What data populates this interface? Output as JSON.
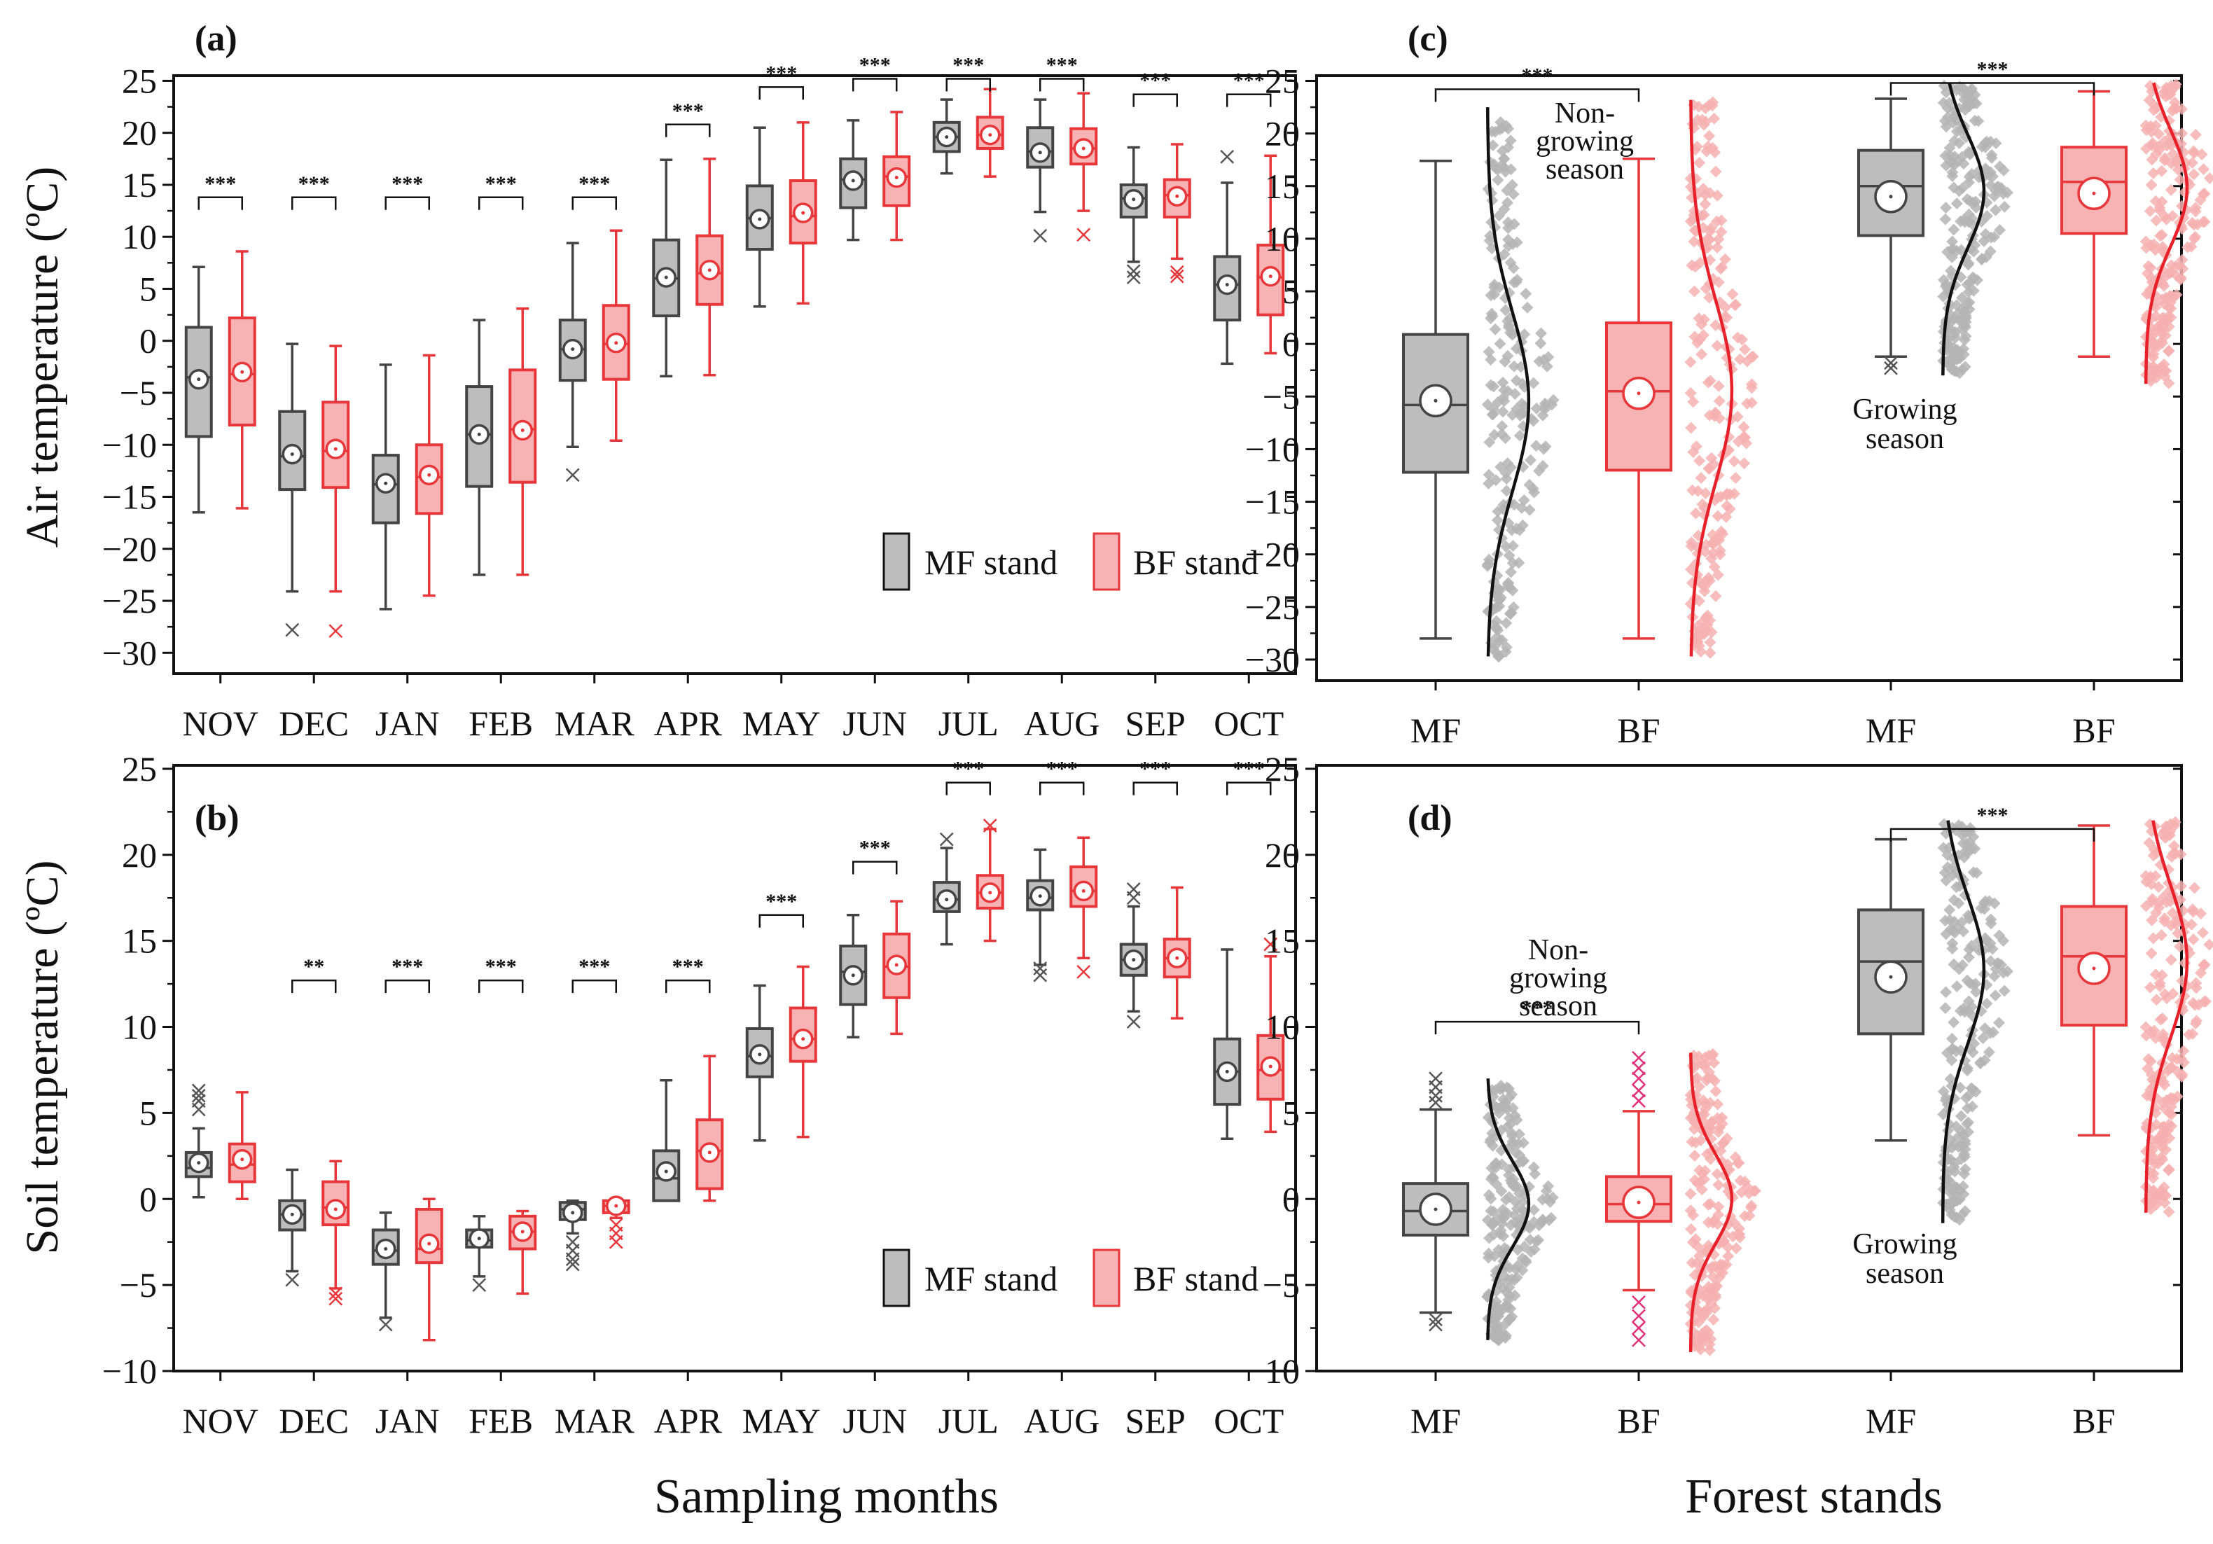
{
  "xlabel_left": "Sampling months",
  "xlabel_right": "Forest stands",
  "ylabel_top": "Air temperature (ºC)",
  "ylabel_bottom": "Soil temperature (ºC)",
  "colors": {
    "mf_stroke": "#444444",
    "mf_fill": "#bdbdbd",
    "bf_stroke": "#e8373a",
    "bf_fill": "#f7b3b3",
    "bf_outlier_soil": "#e0307a",
    "black": "#111111"
  },
  "chart_data": [
    {
      "panel": "(a)",
      "type": "box",
      "ylim": [
        -32,
        25
      ],
      "yticks": [
        -30,
        -25,
        -20,
        -15,
        -10,
        -5,
        0,
        5,
        10,
        15,
        20,
        25
      ],
      "categories": [
        "NOV",
        "DEC",
        "JAN",
        "FEB",
        "MAR",
        "APR",
        "MAY",
        "JUN",
        "JUL",
        "AUG",
        "SEP",
        "OCT"
      ],
      "legend": [
        "MF stand",
        "BF stand"
      ],
      "series": [
        {
          "name": "MF stand",
          "boxes": [
            {
              "min": -16.5,
              "q1": -9.2,
              "median": -3.5,
              "q3": 1.3,
              "max": 7.1,
              "mean": -3.7,
              "outliers": []
            },
            {
              "min": -24.1,
              "q1": -14.3,
              "median": -11.1,
              "q3": -6.8,
              "max": -0.3,
              "mean": -10.9,
              "outliers": [
                -27.8
              ]
            },
            {
              "min": -25.8,
              "q1": -17.5,
              "median": -13.8,
              "q3": -11.0,
              "max": -2.3,
              "mean": -13.7,
              "outliers": []
            },
            {
              "min": -22.5,
              "q1": -14.0,
              "median": -9.0,
              "q3": -4.4,
              "max": 2.0,
              "mean": -9.0,
              "outliers": []
            },
            {
              "min": -10.2,
              "q1": -3.8,
              "median": -0.8,
              "q3": 2.0,
              "max": 9.4,
              "mean": -0.8,
              "outliers": [
                -12.9
              ]
            },
            {
              "min": -3.4,
              "q1": 2.4,
              "median": 6.0,
              "q3": 9.7,
              "max": 17.4,
              "mean": 6.1,
              "outliers": []
            },
            {
              "min": 3.3,
              "q1": 8.8,
              "median": 11.8,
              "q3": 14.9,
              "max": 20.5,
              "mean": 11.7,
              "outliers": []
            },
            {
              "min": 9.7,
              "q1": 12.8,
              "median": 15.5,
              "q3": 17.5,
              "max": 21.2,
              "mean": 15.4,
              "outliers": []
            },
            {
              "min": 16.1,
              "q1": 18.2,
              "median": 19.6,
              "q3": 21.0,
              "max": 23.2,
              "mean": 19.6,
              "outliers": []
            },
            {
              "min": 12.4,
              "q1": 16.7,
              "median": 18.2,
              "q3": 20.5,
              "max": 23.2,
              "mean": 18.1,
              "outliers": [
                10.1
              ]
            },
            {
              "min": 7.6,
              "q1": 11.9,
              "median": 13.7,
              "q3": 15.0,
              "max": 18.6,
              "mean": 13.6,
              "outliers": [
                6.1,
                6.7
              ]
            },
            {
              "min": -2.2,
              "q1": 2.0,
              "median": 5.4,
              "q3": 8.1,
              "max": 15.2,
              "mean": 5.4,
              "outliers": [
                17.7
              ]
            }
          ]
        },
        {
          "name": "BF stand",
          "boxes": [
            {
              "min": -16.1,
              "q1": -8.1,
              "median": -3.2,
              "q3": 2.2,
              "max": 8.6,
              "mean": -3.0,
              "outliers": []
            },
            {
              "min": -24.1,
              "q1": -14.1,
              "median": -10.6,
              "q3": -5.9,
              "max": -0.5,
              "mean": -10.4,
              "outliers": [
                -27.9
              ]
            },
            {
              "min": -24.5,
              "q1": -16.6,
              "median": -13.1,
              "q3": -10.0,
              "max": -1.4,
              "mean": -12.9,
              "outliers": []
            },
            {
              "min": -22.5,
              "q1": -13.6,
              "median": -8.5,
              "q3": -2.8,
              "max": 3.1,
              "mean": -8.6,
              "outliers": []
            },
            {
              "min": -9.6,
              "q1": -3.7,
              "median": -0.3,
              "q3": 3.4,
              "max": 10.6,
              "mean": -0.2,
              "outliers": []
            },
            {
              "min": -3.3,
              "q1": 3.5,
              "median": 6.5,
              "q3": 10.1,
              "max": 17.5,
              "mean": 6.8,
              "outliers": []
            },
            {
              "min": 3.6,
              "q1": 9.4,
              "median": 12.0,
              "q3": 15.4,
              "max": 21.0,
              "mean": 12.3,
              "outliers": []
            },
            {
              "min": 9.7,
              "q1": 13.0,
              "median": 15.8,
              "q3": 17.7,
              "max": 22.0,
              "mean": 15.7,
              "outliers": []
            },
            {
              "min": 15.8,
              "q1": 18.5,
              "median": 19.8,
              "q3": 21.5,
              "max": 24.2,
              "mean": 19.8,
              "outliers": []
            },
            {
              "min": 12.5,
              "q1": 17.0,
              "median": 18.5,
              "q3": 20.4,
              "max": 23.8,
              "mean": 18.5,
              "outliers": [
                10.2
              ]
            },
            {
              "min": 7.9,
              "q1": 11.9,
              "median": 14.0,
              "q3": 15.5,
              "max": 18.9,
              "mean": 13.9,
              "outliers": [
                6.2,
                6.6
              ]
            },
            {
              "min": -1.2,
              "q1": 2.5,
              "median": 6.1,
              "q3": 9.2,
              "max": 17.8,
              "mean": 6.2,
              "outliers": []
            }
          ]
        }
      ],
      "significance": [
        "***",
        "***",
        "***",
        "***",
        "***",
        "***",
        "***",
        "***",
        "***",
        "***",
        "***",
        "***"
      ]
    },
    {
      "panel": "(b)",
      "type": "box",
      "ylim": [
        -10,
        25
      ],
      "yticks": [
        -10,
        -5,
        0,
        5,
        10,
        15,
        20,
        25
      ],
      "categories": [
        "NOV",
        "DEC",
        "JAN",
        "FEB",
        "MAR",
        "APR",
        "MAY",
        "JUN",
        "JUL",
        "AUG",
        "SEP",
        "OCT"
      ],
      "legend": [
        "MF stand",
        "BF stand"
      ],
      "series": [
        {
          "name": "MF stand",
          "boxes": [
            {
              "min": 0.1,
              "q1": 1.3,
              "median": 1.8,
              "q3": 2.7,
              "max": 4.1,
              "mean": 2.1,
              "outliers": [
                5.2,
                5.7,
                6.0,
                6.3
              ]
            },
            {
              "min": -4.2,
              "q1": -1.8,
              "median": -0.9,
              "q3": -0.1,
              "max": 1.7,
              "mean": -0.9,
              "outliers": [
                -4.7
              ]
            },
            {
              "min": -6.9,
              "q1": -3.8,
              "median": -3.0,
              "q3": -1.8,
              "max": -0.8,
              "mean": -2.9,
              "outliers": [
                -7.3
              ]
            },
            {
              "min": -4.5,
              "q1": -2.8,
              "median": -2.4,
              "q3": -1.8,
              "max": -1.0,
              "mean": -2.3,
              "outliers": [
                -5.0
              ]
            },
            {
              "min": -2.0,
              "q1": -1.2,
              "median": -0.6,
              "q3": -0.2,
              "max": -0.1,
              "mean": -0.8,
              "outliers": [
                -2.5,
                -3.0,
                -3.5,
                -3.8
              ]
            },
            {
              "min": -0.1,
              "q1": -0.1,
              "median": 1.2,
              "q3": 2.8,
              "max": 6.9,
              "mean": 1.6,
              "outliers": []
            },
            {
              "min": 3.4,
              "q1": 7.1,
              "median": 8.3,
              "q3": 9.9,
              "max": 12.4,
              "mean": 8.4,
              "outliers": []
            },
            {
              "min": 9.4,
              "q1": 11.3,
              "median": 13.2,
              "q3": 14.7,
              "max": 16.5,
              "mean": 13.0,
              "outliers": []
            },
            {
              "min": 14.8,
              "q1": 16.7,
              "median": 17.4,
              "q3": 18.4,
              "max": 20.4,
              "mean": 17.4,
              "outliers": [
                20.9
              ]
            },
            {
              "min": 13.6,
              "q1": 16.8,
              "median": 17.5,
              "q3": 18.5,
              "max": 20.3,
              "mean": 17.6,
              "outliers": [
                13.0,
                13.4
              ]
            },
            {
              "min": 10.9,
              "q1": 13.0,
              "median": 13.9,
              "q3": 14.8,
              "max": 17.0,
              "mean": 13.9,
              "outliers": [
                10.3,
                17.5,
                18.0
              ]
            },
            {
              "min": 3.5,
              "q1": 5.5,
              "median": 7.4,
              "q3": 9.3,
              "max": 14.5,
              "mean": 7.4,
              "outliers": []
            }
          ]
        },
        {
          "name": "BF stand",
          "boxes": [
            {
              "min": 0.0,
              "q1": 1.0,
              "median": 2.0,
              "q3": 3.2,
              "max": 6.2,
              "mean": 2.3,
              "outliers": []
            },
            {
              "min": -5.2,
              "q1": -1.5,
              "median": -0.5,
              "q3": 1.0,
              "max": 2.2,
              "mean": -0.6,
              "outliers": [
                -5.5,
                -5.8
              ]
            },
            {
              "min": -8.2,
              "q1": -3.7,
              "median": -2.9,
              "q3": -0.6,
              "max": 0.0,
              "mean": -2.6,
              "outliers": []
            },
            {
              "min": -5.5,
              "q1": -2.9,
              "median": -1.9,
              "q3": -1.0,
              "max": -0.7,
              "mean": -1.9,
              "outliers": []
            },
            {
              "min": -1.1,
              "q1": -0.8,
              "median": -0.4,
              "q3": -0.1,
              "max": -0.1,
              "mean": -0.4,
              "outliers": [
                -1.5,
                -2.0,
                -2.5
              ]
            },
            {
              "min": -0.1,
              "q1": 0.6,
              "median": 2.8,
              "q3": 4.6,
              "max": 8.3,
              "mean": 2.7,
              "outliers": []
            },
            {
              "min": 3.6,
              "q1": 8.0,
              "median": 9.3,
              "q3": 11.1,
              "max": 13.5,
              "mean": 9.3,
              "outliers": []
            },
            {
              "min": 9.6,
              "q1": 11.7,
              "median": 13.5,
              "q3": 15.4,
              "max": 17.3,
              "mean": 13.6,
              "outliers": []
            },
            {
              "min": 15.0,
              "q1": 16.9,
              "median": 17.8,
              "q3": 18.8,
              "max": 21.5,
              "mean": 17.8,
              "outliers": [
                21.7
              ]
            },
            {
              "min": 14.0,
              "q1": 17.0,
              "median": 17.9,
              "q3": 19.3,
              "max": 21.0,
              "mean": 17.9,
              "outliers": [
                13.2
              ]
            },
            {
              "min": 10.5,
              "q1": 12.9,
              "median": 14.0,
              "q3": 15.1,
              "max": 18.1,
              "mean": 14.0,
              "outliers": []
            },
            {
              "min": 3.9,
              "q1": 5.8,
              "median": 7.5,
              "q3": 9.5,
              "max": 14.1,
              "mean": 7.7,
              "outliers": [
                14.8
              ]
            }
          ]
        }
      ],
      "significance": [
        "",
        "**",
        "***",
        "***",
        "***",
        "***",
        "***",
        "***",
        "***",
        "***",
        "***",
        "***"
      ]
    },
    {
      "panel": "(c)",
      "type": "box",
      "ylim": [
        -32,
        25
      ],
      "yticks": [
        -30,
        -25,
        -20,
        -15,
        -10,
        -5,
        0,
        5,
        10,
        15,
        20,
        25
      ],
      "categories": [
        "MF",
        "BF",
        "MF",
        "BF"
      ],
      "groups": [
        "Non-growing season",
        "Growing season"
      ],
      "boxes": [
        {
          "stand": "MF",
          "min": -28.0,
          "q1": -12.2,
          "median": -5.8,
          "q3": 0.9,
          "max": 17.4,
          "mean": -5.4,
          "outliers": [],
          "dist_mean": -5.5,
          "dist_sd": 8.5,
          "dist_range": [
            -29.7,
            22.5
          ]
        },
        {
          "stand": "BF",
          "min": -28.0,
          "q1": -12.0,
          "median": -4.5,
          "q3": 2.0,
          "max": 17.6,
          "mean": -4.7,
          "outliers": [],
          "dist_mean": -4.5,
          "dist_sd": 8.7,
          "dist_range": [
            -29.7,
            23.2
          ]
        },
        {
          "stand": "MF",
          "min": -1.2,
          "q1": 10.3,
          "median": 15.0,
          "q3": 18.4,
          "max": 23.3,
          "mean": 14.0,
          "outliers": [
            -1.8,
            -2.3
          ],
          "dist_mean": 14.5,
          "dist_sd": 5.4,
          "dist_range": [
            -3.0,
            24.8
          ]
        },
        {
          "stand": "BF",
          "min": -1.2,
          "q1": 10.5,
          "median": 15.4,
          "q3": 18.7,
          "max": 24.0,
          "mean": 14.3,
          "outliers": [],
          "dist_mean": 14.8,
          "dist_sd": 5.5,
          "dist_range": [
            -3.8,
            24.8
          ]
        }
      ],
      "significance": [
        "***",
        "***"
      ]
    },
    {
      "panel": "(d)",
      "type": "box",
      "ylim": [
        -10,
        25
      ],
      "yticks": [
        -10,
        -5,
        0,
        5,
        10,
        15,
        20,
        25
      ],
      "categories": [
        "MF",
        "BF",
        "MF",
        "BF"
      ],
      "groups": [
        "Non-growing season",
        "Growing season"
      ],
      "boxes": [
        {
          "stand": "MF",
          "min": -6.6,
          "q1": -2.1,
          "median": -0.7,
          "q3": 0.9,
          "max": 5.2,
          "mean": -0.6,
          "outliers": [
            -7.3,
            -7.0,
            5.6,
            6.0,
            6.5,
            7.0
          ],
          "dist_mean": -0.3,
          "dist_sd": 2.5,
          "dist_range": [
            -8.2,
            7.0
          ]
        },
        {
          "stand": "BF",
          "min": -5.3,
          "q1": -1.3,
          "median": -0.3,
          "q3": 1.3,
          "max": 5.1,
          "mean": -0.2,
          "outliers": [
            -8.2,
            -7.5,
            -6.8,
            -6.0,
            5.7,
            6.3,
            7.0,
            7.6,
            8.2
          ],
          "dist_mean": 0.0,
          "dist_sd": 2.6,
          "dist_range": [
            -8.9,
            8.5
          ]
        },
        {
          "stand": "MF",
          "min": 3.4,
          "q1": 9.6,
          "median": 13.8,
          "q3": 16.8,
          "max": 20.9,
          "mean": 12.9,
          "outliers": [],
          "dist_mean": 13.3,
          "dist_sd": 4.3,
          "dist_range": [
            -1.4,
            22.0
          ]
        },
        {
          "stand": "BF",
          "min": 3.7,
          "q1": 10.1,
          "median": 14.1,
          "q3": 17.0,
          "max": 21.7,
          "mean": 13.4,
          "outliers": [],
          "dist_mean": 13.8,
          "dist_sd": 4.4,
          "dist_range": [
            -0.8,
            22.0
          ]
        }
      ],
      "significance": [
        "***",
        "***"
      ]
    }
  ]
}
